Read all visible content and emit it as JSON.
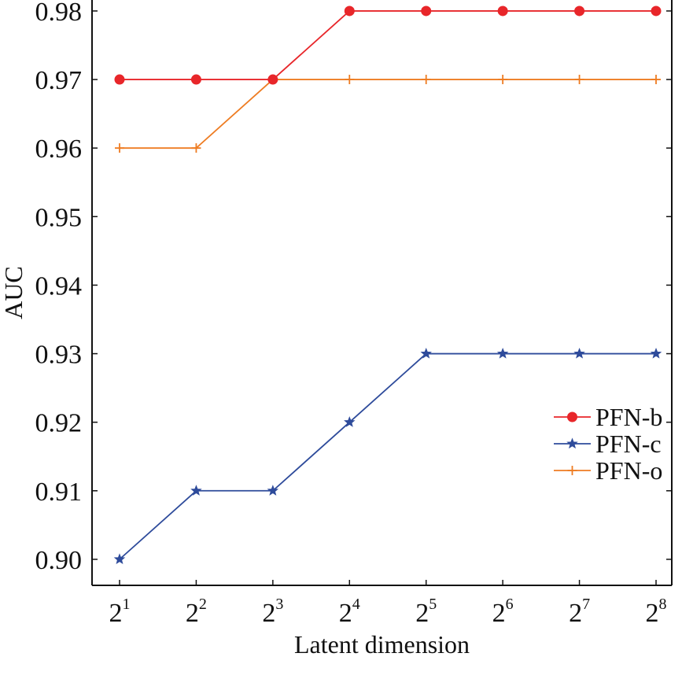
{
  "chart_data": {
    "type": "line",
    "title": "",
    "xlabel": "Latent dimension",
    "ylabel": "AUC",
    "x": [
      1,
      2,
      3,
      4,
      5,
      6,
      7,
      8
    ],
    "x_tick_labels": [
      {
        "base": "2",
        "exp": "1"
      },
      {
        "base": "2",
        "exp": "2"
      },
      {
        "base": "2",
        "exp": "3"
      },
      {
        "base": "2",
        "exp": "4"
      },
      {
        "base": "2",
        "exp": "5"
      },
      {
        "base": "2",
        "exp": "6"
      },
      {
        "base": "2",
        "exp": "7"
      },
      {
        "base": "2",
        "exp": "8"
      }
    ],
    "ylim": [
      0.8962,
      0.9816
    ],
    "y_ticks": [
      0.9,
      0.91,
      0.92,
      0.93,
      0.94,
      0.95,
      0.96,
      0.97,
      0.98
    ],
    "y_tick_labels": [
      "0.90",
      "0.91",
      "0.92",
      "0.93",
      "0.94",
      "0.95",
      "0.96",
      "0.97",
      "0.98"
    ],
    "grid": false,
    "legend_position": "right-middle",
    "series": [
      {
        "name": "PFN-b",
        "color": "#e8262a",
        "marker": "circle",
        "values": [
          0.97,
          0.97,
          0.97,
          0.98,
          0.98,
          0.98,
          0.98,
          0.98
        ]
      },
      {
        "name": "PFN-c",
        "color": "#2e4b9b",
        "marker": "star",
        "values": [
          0.9,
          0.91,
          0.91,
          0.92,
          0.93,
          0.93,
          0.93,
          0.93
        ]
      },
      {
        "name": "PFN-o",
        "color": "#ee7c22",
        "marker": "plus",
        "values": [
          0.96,
          0.96,
          0.97,
          0.97,
          0.97,
          0.97,
          0.97,
          0.97
        ]
      }
    ]
  }
}
